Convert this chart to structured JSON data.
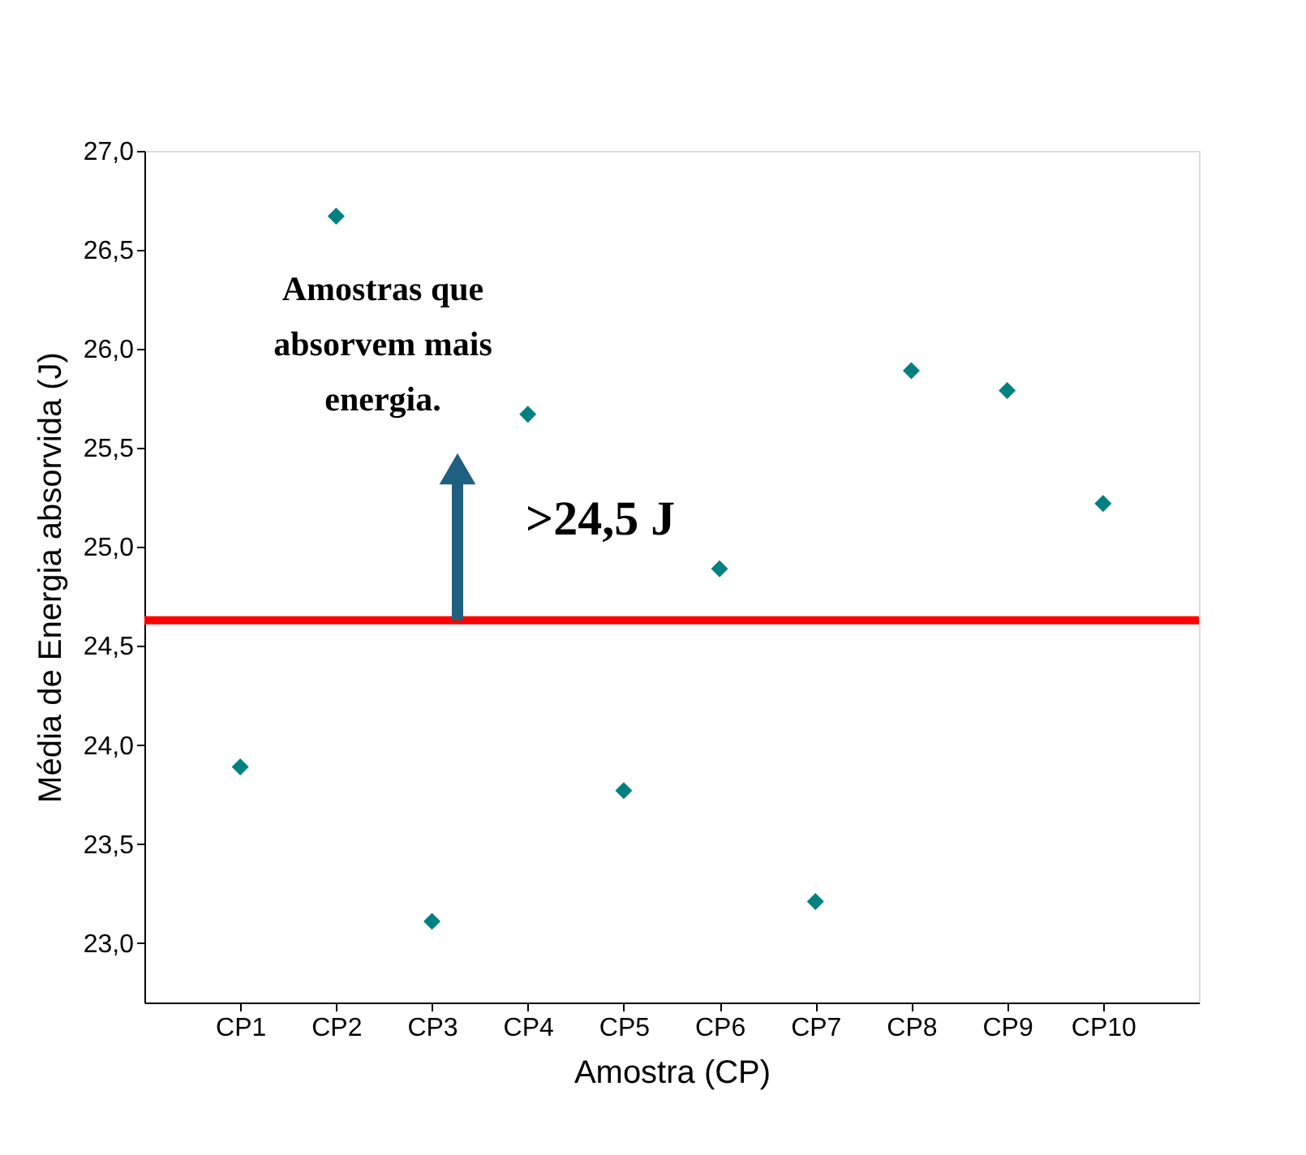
{
  "chart_data": {
    "type": "scatter",
    "xlabel": "Amostra (CP)",
    "ylabel": "Média de Energia absorvida (J)",
    "categories": [
      "CP1",
      "CP2",
      "CP3",
      "CP4",
      "CP5",
      "CP6",
      "CP7",
      "CP8",
      "CP9",
      "CP10"
    ],
    "series": [
      {
        "color": "#008080",
        "values": [
          23.89,
          26.67,
          23.11,
          25.67,
          23.77,
          24.89,
          23.21,
          25.89,
          25.79,
          25.22
        ]
      }
    ],
    "marker": "diamond",
    "ylim": [
      22.7,
      27.0
    ],
    "yticks": [
      {
        "value": 23.0,
        "label": "23,0"
      },
      {
        "value": 23.5,
        "label": "23,5"
      },
      {
        "value": 24.0,
        "label": "24,0"
      },
      {
        "value": 24.5,
        "label": "24,5"
      },
      {
        "value": 25.0,
        "label": "25,0"
      },
      {
        "value": 25.5,
        "label": "25,5"
      },
      {
        "value": 26.0,
        "label": "26,0"
      },
      {
        "value": 26.5,
        "label": "26,5"
      },
      {
        "value": 27.0,
        "label": "27,0"
      }
    ],
    "ref_lines": [
      {
        "axis": "y",
        "value": 24.63,
        "label": ">24,5 J",
        "color": "#ff0000",
        "line_style": "solid"
      }
    ],
    "annotations": [
      "Amostras que absorvem mais energia."
    ],
    "grid": false
  }
}
